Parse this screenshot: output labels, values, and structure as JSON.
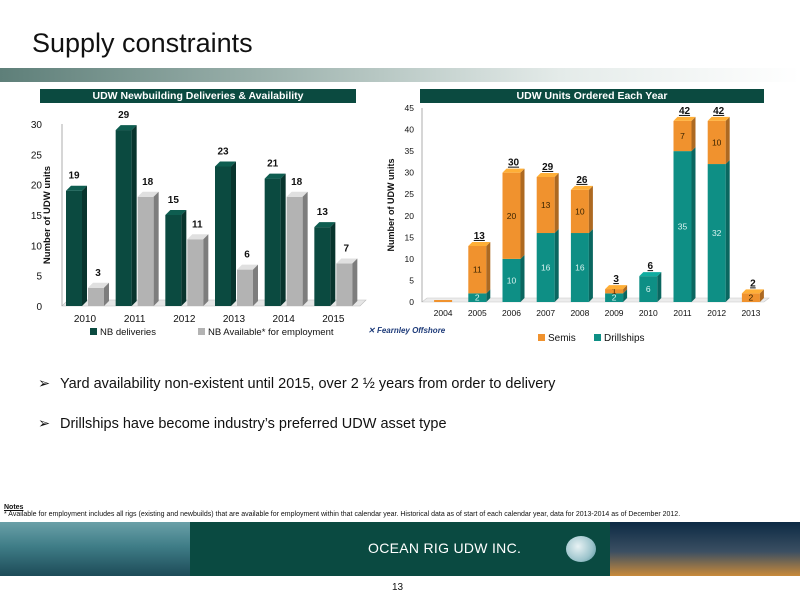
{
  "slide": {
    "title": "Supply constraints",
    "bullets": [
      "Yard availability non-existent until 2015, over 2 ½ years from order to delivery",
      "Drillships have become industry’s preferred UDW  asset type"
    ],
    "notes_heading": "Notes",
    "notes_text": "* Available for employment includes all rigs (existing and newbuilds)  that are available for employment within that calendar year. Historical data as of start of each calendar year, data for 2013-2014 as of December 2012.",
    "source_logo": "Fearnley Offshore",
    "footer_company": "OCEAN RIG UDW INC.",
    "page_number": "13"
  },
  "colors": {
    "dark_green": "#0b4a40",
    "gray_bar": "#b3b3b3",
    "orange": "#f0922e",
    "teal": "#0e8f85"
  },
  "chart_data": [
    {
      "type": "bar",
      "title": "UDW Newbuilding Deliveries & Availability",
      "categories": [
        "2010",
        "2011",
        "2012",
        "2013",
        "2014",
        "2015"
      ],
      "ylabel": "Number of UDW units",
      "ylim": [
        0,
        30
      ],
      "yticks": [
        0,
        5,
        10,
        15,
        20,
        25,
        30
      ],
      "series": [
        {
          "name": "NB deliveries",
          "values": [
            19,
            29,
            15,
            23,
            21,
            13
          ]
        },
        {
          "name": "NB Available* for employment",
          "values": [
            3,
            18,
            11,
            6,
            18,
            7
          ]
        }
      ],
      "legend": "bottom"
    },
    {
      "type": "bar",
      "stacked": true,
      "title": "UDW Units Ordered Each Year",
      "categories": [
        "2004",
        "2005",
        "2006",
        "2007",
        "2008",
        "2009",
        "2010",
        "2011",
        "2012",
        "2013"
      ],
      "ylabel": "Number of UDW units",
      "ylim": [
        0,
        45
      ],
      "yticks": [
        0,
        5,
        10,
        15,
        20,
        25,
        30,
        35,
        40,
        45
      ],
      "series": [
        {
          "name": "Drillships",
          "values": [
            0,
            2,
            10,
            16,
            16,
            2,
            6,
            35,
            32,
            0
          ]
        },
        {
          "name": "Semis",
          "values": [
            0,
            11,
            20,
            13,
            10,
            1,
            0,
            7,
            10,
            2
          ]
        }
      ],
      "totals": [
        0,
        13,
        30,
        29,
        26,
        3,
        6,
        42,
        42,
        2
      ],
      "legend": "bottom"
    }
  ]
}
